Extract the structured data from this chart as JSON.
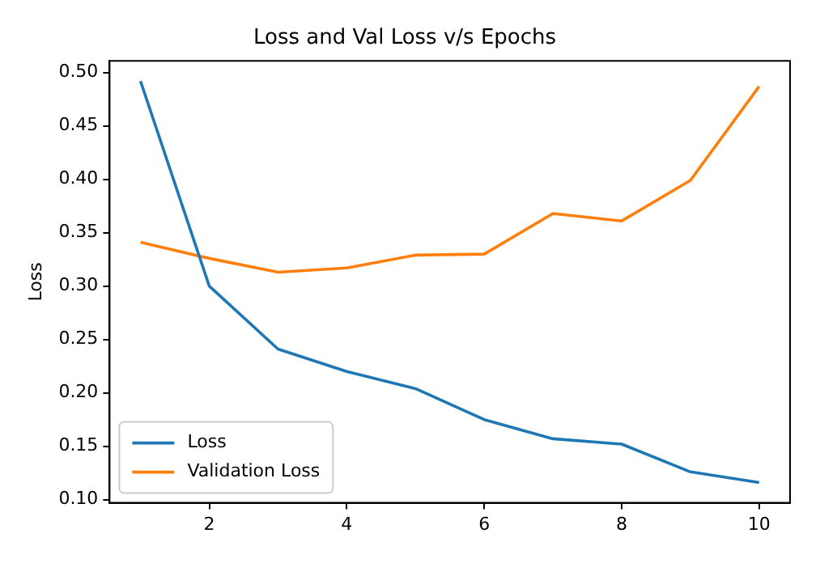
{
  "chart_data": {
    "type": "line",
    "title": "Loss and Val Loss v/s Epochs",
    "ylabel": "Loss",
    "x": [
      1,
      2,
      3,
      4,
      5,
      6,
      7,
      8,
      9,
      10
    ],
    "series": [
      {
        "name": "Loss",
        "color": "#1f77b4",
        "values": [
          0.492,
          0.3,
          0.241,
          0.22,
          0.204,
          0.175,
          0.157,
          0.152,
          0.126,
          0.116
        ]
      },
      {
        "name": "Validation Loss",
        "color": "#ff7f0e",
        "values": [
          0.341,
          0.326,
          0.313,
          0.317,
          0.329,
          0.33,
          0.368,
          0.361,
          0.399,
          0.487
        ]
      }
    ],
    "xlim": [
      0.55,
      10.45
    ],
    "xticks": [
      2,
      4,
      6,
      8,
      10
    ],
    "ylim": [
      0.097,
      0.511
    ],
    "yticks": [
      {
        "value": 0.1,
        "label": "0.10"
      },
      {
        "value": 0.15,
        "label": "0.15"
      },
      {
        "value": 0.2,
        "label": "0.20"
      },
      {
        "value": 0.25,
        "label": "0.25"
      },
      {
        "value": 0.3,
        "label": "0.30"
      },
      {
        "value": 0.35,
        "label": "0.35"
      },
      {
        "value": 0.4,
        "label": "0.40"
      },
      {
        "value": 0.45,
        "label": "0.45"
      },
      {
        "value": 0.5,
        "label": "0.50"
      }
    ],
    "grid": false,
    "legend": "bottom left",
    "marker": "none",
    "line_style": "solid"
  }
}
